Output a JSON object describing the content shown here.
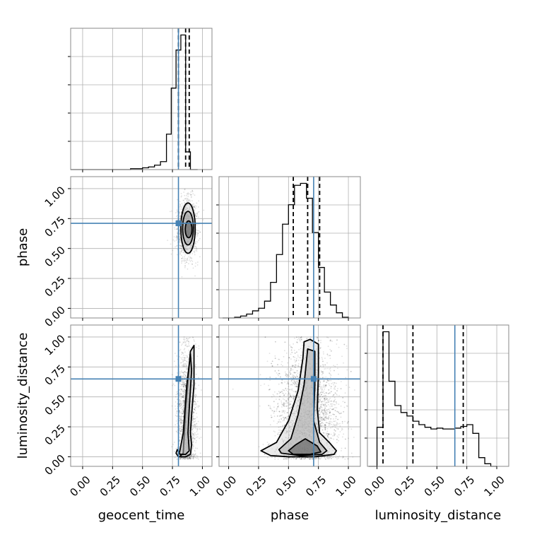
{
  "chart_data": {
    "type": "corner",
    "parameters": [
      "geocent_time",
      "phase",
      "luminosity_distance"
    ],
    "tick_labels": [
      "0.00",
      "0.25",
      "0.50",
      "0.75",
      "1.00"
    ],
    "axis_ranges": [
      [
        -0.1,
        1.08
      ],
      [
        -0.08,
        1.1
      ],
      [
        -0.08,
        1.1
      ]
    ],
    "truths": [
      0.8,
      0.71,
      0.65
    ],
    "grid": true,
    "colors": {
      "truth": "#4682b4",
      "hist": "#000000",
      "points": "#000000"
    },
    "histograms": [
      {
        "parameter": "geocent_time",
        "bin_edges": [
          -0.1,
          0.0,
          0.1,
          0.2,
          0.3,
          0.4,
          0.45,
          0.5,
          0.55,
          0.6,
          0.65,
          0.7,
          0.74,
          0.78,
          0.82,
          0.86,
          0.9,
          0.96
        ],
        "counts": [
          0,
          0,
          0,
          0,
          0,
          1,
          1,
          2,
          3,
          5,
          9,
          40,
          92,
          135,
          152,
          20,
          0
        ],
        "quantile_lines": [
          0.8,
          0.86,
          0.89
        ]
      },
      {
        "parameter": "phase",
        "bin_edges": [
          -0.05,
          0.0,
          0.05,
          0.1,
          0.15,
          0.2,
          0.25,
          0.3,
          0.35,
          0.4,
          0.45,
          0.5,
          0.55,
          0.6,
          0.65,
          0.7,
          0.75,
          0.8,
          0.85,
          0.9,
          0.95,
          1.0
        ],
        "counts": [
          0,
          0,
          1,
          3,
          6,
          11,
          15,
          26,
          55,
          98,
          145,
          175,
          205,
          208,
          185,
          132,
          78,
          40,
          20,
          8,
          1
        ],
        "quantile_lines": [
          0.54,
          0.66,
          0.76
        ]
      },
      {
        "parameter": "luminosity_distance",
        "bin_edges": [
          -0.07,
          0.0,
          0.05,
          0.1,
          0.15,
          0.2,
          0.25,
          0.3,
          0.35,
          0.4,
          0.45,
          0.5,
          0.55,
          0.6,
          0.65,
          0.7,
          0.75,
          0.8,
          0.85,
          0.9,
          0.95,
          1.0
        ],
        "counts": [
          0,
          45,
          155,
          98,
          70,
          62,
          58,
          52,
          48,
          45,
          43,
          44,
          43,
          43,
          44,
          46,
          48,
          38,
          10,
          3,
          0
        ],
        "quantile_lines": [
          0.05,
          0.3,
          0.72
        ]
      }
    ],
    "scatter_panels": [
      {
        "x": "geocent_time",
        "y": "phase",
        "point_cloud": {
          "center": [
            0.87,
            0.67
          ],
          "spread": [
            0.04,
            0.12
          ],
          "count": 1400
        },
        "contour_levels": [
          {
            "cx": 0.88,
            "cy": 0.67,
            "rx": 0.06,
            "ry": 0.21
          },
          {
            "cx": 0.88,
            "cy": 0.67,
            "rx": 0.045,
            "ry": 0.14
          },
          {
            "cx": 0.885,
            "cy": 0.66,
            "rx": 0.028,
            "ry": 0.07
          }
        ]
      },
      {
        "x": "geocent_time",
        "y": "luminosity_distance",
        "point_cloud": {
          "center": [
            0.87,
            0.35
          ],
          "spread": [
            0.04,
            0.28
          ],
          "count": 1600
        },
        "contour_levels": [
          {
            "path_x": [
              0.79,
              0.82,
              0.84,
              0.86,
              0.9,
              0.93,
              0.93,
              0.91,
              0.9,
              0.91,
              0.9,
              0.86,
              0.8,
              0.78,
              0.79
            ],
            "path_y": [
              0.06,
              0.01,
              0.03,
              0.4,
              0.88,
              0.93,
              0.6,
              0.35,
              0.2,
              0.1,
              0.02,
              0.0,
              0.0,
              0.03,
              0.06
            ]
          },
          {
            "path_x": [
              0.81,
              0.84,
              0.87,
              0.9,
              0.91,
              0.89,
              0.88,
              0.89,
              0.86,
              0.82,
              0.8,
              0.81
            ],
            "path_y": [
              0.04,
              0.2,
              0.6,
              0.86,
              0.72,
              0.4,
              0.2,
              0.05,
              0.02,
              0.02,
              0.03,
              0.04
            ]
          }
        ]
      },
      {
        "x": "phase",
        "y": "luminosity_distance",
        "point_cloud": {
          "center": [
            0.66,
            0.35
          ],
          "spread": [
            0.13,
            0.28
          ],
          "count": 3200
        },
        "contour_levels": [
          {
            "path_x": [
              0.27,
              0.4,
              0.5,
              0.58,
              0.62,
              0.63,
              0.68,
              0.75,
              0.75,
              0.74,
              0.76,
              0.84,
              0.9,
              0.88,
              0.72,
              0.5,
              0.35,
              0.27
            ],
            "path_y": [
              0.05,
              0.12,
              0.3,
              0.55,
              0.82,
              0.96,
              0.98,
              0.94,
              0.7,
              0.4,
              0.2,
              0.12,
              0.05,
              0.02,
              0.0,
              0.0,
              0.01,
              0.05
            ]
          },
          {
            "path_x": [
              0.42,
              0.52,
              0.58,
              0.63,
              0.66,
              0.72,
              0.72,
              0.71,
              0.76,
              0.82,
              0.78,
              0.6,
              0.44,
              0.42
            ],
            "path_y": [
              0.06,
              0.15,
              0.35,
              0.6,
              0.9,
              0.88,
              0.6,
              0.3,
              0.12,
              0.05,
              0.02,
              0.01,
              0.03,
              0.06
            ]
          },
          {
            "path_x": [
              0.5,
              0.56,
              0.64,
              0.74,
              0.77,
              0.68,
              0.54,
              0.5
            ],
            "path_y": [
              0.05,
              0.1,
              0.15,
              0.09,
              0.04,
              0.02,
              0.02,
              0.05
            ]
          }
        ]
      }
    ]
  }
}
